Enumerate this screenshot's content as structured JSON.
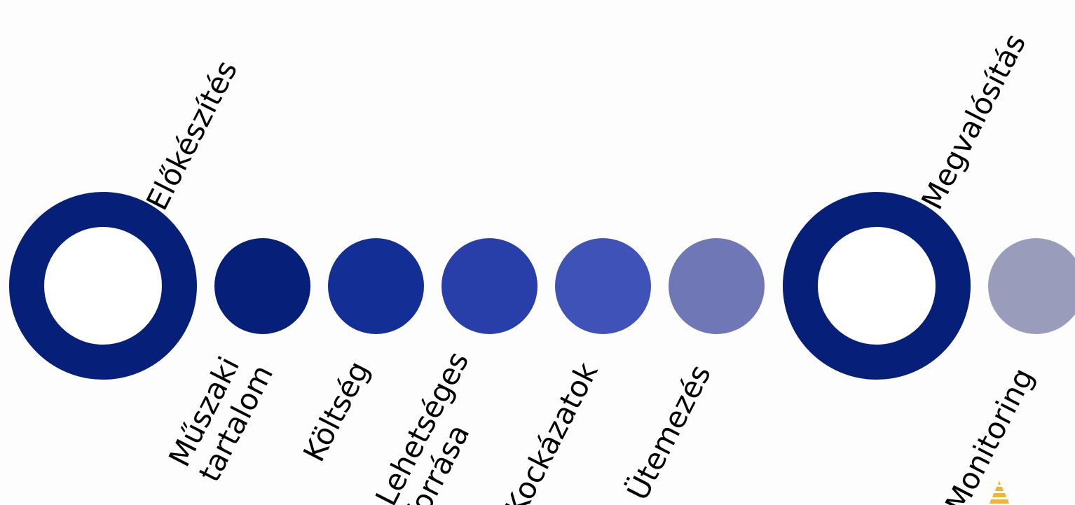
{
  "colors": {
    "ring_navy": "#06207a",
    "step_1": "#06207a",
    "step_2": "#132f95",
    "step_3": "#283fa9",
    "step_4": "#3f52b7",
    "step_5": "#6f77b6",
    "step_6": "#9a9cbb",
    "label_text": "#000000",
    "corner_mark": "#f2b52c"
  },
  "phases": [
    {
      "label": "Előkészítés"
    },
    {
      "label": "Megvalósítás"
    }
  ],
  "steps": [
    {
      "label": "Műszaki\ntartalom"
    },
    {
      "label": "Költség"
    },
    {
      "label": "Lehetséges\nforrása"
    },
    {
      "label": "Kockázatok"
    },
    {
      "label": "Ütemezés"
    },
    {
      "label": "Monitoring"
    }
  ]
}
